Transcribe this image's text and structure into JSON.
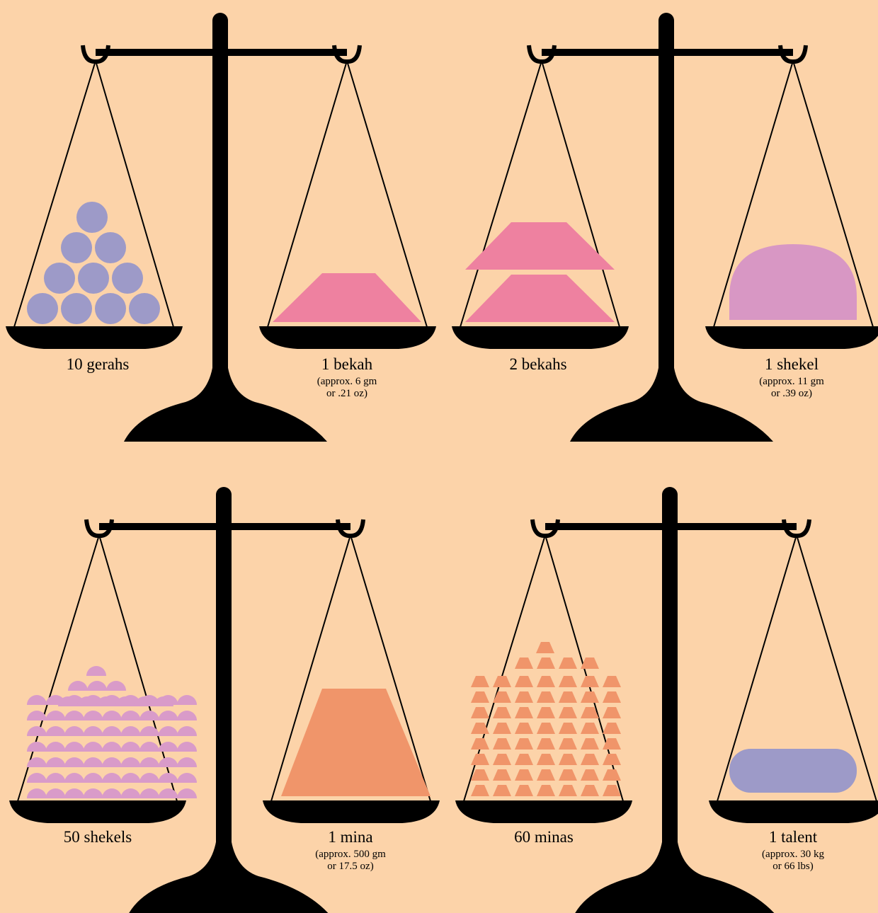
{
  "scales": [
    {
      "left": {
        "label": "10 gerahs"
      },
      "right": {
        "label": "1 bekah",
        "note": [
          "(approx. 6 gm",
          "or .21 oz)"
        ]
      }
    },
    {
      "left": {
        "label": "2 bekahs"
      },
      "right": {
        "label": "1 shekel",
        "note": [
          "(approx. 11 gm",
          "or .39 oz)"
        ]
      }
    },
    {
      "left": {
        "label": "50 shekels"
      },
      "right": {
        "label": "1 mina",
        "note": [
          "(approx. 500 gm",
          "or 17.5 oz)"
        ]
      }
    },
    {
      "left": {
        "label": "60 minas"
      },
      "right": {
        "label": "1 talent",
        "note": [
          "(approx. 30 kg",
          "or 66 lbs)"
        ]
      }
    }
  ]
}
